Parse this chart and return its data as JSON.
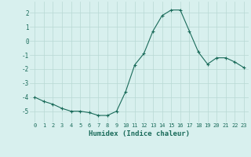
{
  "x": [
    0,
    1,
    2,
    3,
    4,
    5,
    6,
    7,
    8,
    9,
    10,
    11,
    12,
    13,
    14,
    15,
    16,
    17,
    18,
    19,
    20,
    21,
    22,
    23
  ],
  "y": [
    -4.0,
    -4.3,
    -4.5,
    -4.8,
    -5.0,
    -5.0,
    -5.1,
    -5.3,
    -5.3,
    -5.0,
    -3.6,
    -1.7,
    -0.9,
    0.7,
    1.8,
    2.2,
    2.2,
    0.7,
    -0.8,
    -1.65,
    -1.2,
    -1.2,
    -1.5,
    -1.9
  ],
  "line_color": "#1a6b5a",
  "marker": "+",
  "bg_color": "#d8f0ee",
  "grid_color": "#b8d8d4",
  "xlabel": "Humidex (Indice chaleur)",
  "xlabel_color": "#1a6b5a",
  "tick_color": "#1a6b5a",
  "ylim": [
    -5.8,
    2.8
  ],
  "yticks": [
    -5,
    -4,
    -3,
    -2,
    -1,
    0,
    1,
    2
  ],
  "xlim": [
    -0.5,
    23.5
  ],
  "xticks": [
    0,
    1,
    2,
    3,
    4,
    5,
    6,
    7,
    8,
    9,
    10,
    11,
    12,
    13,
    14,
    15,
    16,
    17,
    18,
    19,
    20,
    21,
    22,
    23
  ],
  "xtick_labels": [
    "0",
    "1",
    "2",
    "3",
    "4",
    "5",
    "6",
    "7",
    "8",
    "9",
    "10",
    "11",
    "12",
    "13",
    "14",
    "15",
    "16",
    "17",
    "18",
    "19",
    "20",
    "21",
    "22",
    "23"
  ]
}
